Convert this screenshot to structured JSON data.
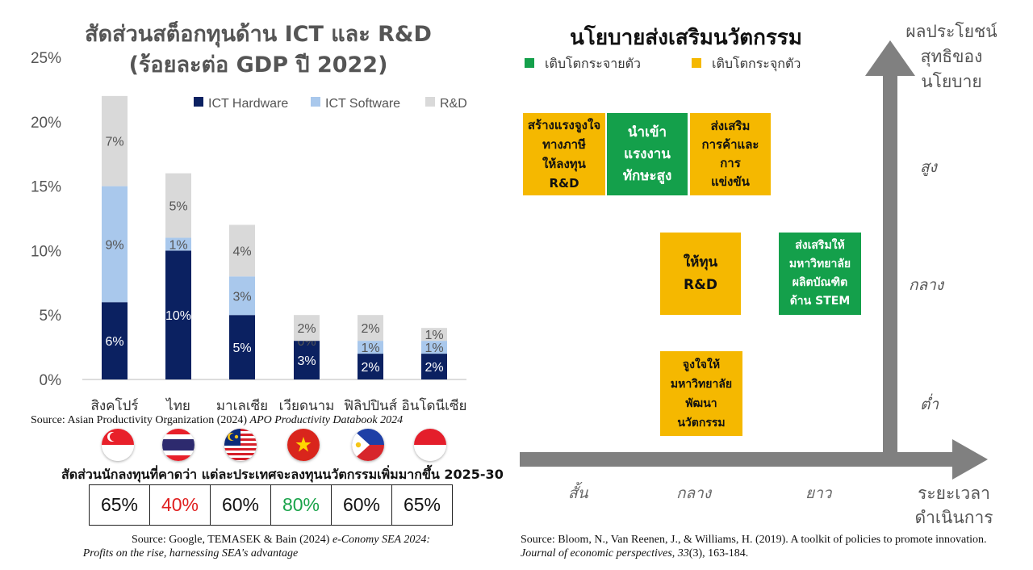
{
  "left": {
    "title_line1": "สัดส่วนสต็อกทุนด้าน ICT และ R&D",
    "title_line2": "(ร้อยละต่อ GDP ปี 2022)",
    "source_plain": "Source: Asian Productivity Organization (2024) ",
    "source_italic": "APO Productivity Databook 2024",
    "flags": [
      "singapore-flag",
      "thailand-flag",
      "malaysia-flag",
      "vietnam-flag",
      "philippines-flag",
      "indonesia-flag"
    ],
    "investor_title": "สัดส่วนนักลงทุนที่คาดว่า แต่ละประเทศจะลงทุนนวัตกรรมเพิ่มมากขึ้น 2025-30",
    "investor_values": [
      {
        "value": "65%",
        "color": "#111111"
      },
      {
        "value": "40%",
        "color": "#E02020"
      },
      {
        "value": "60%",
        "color": "#111111"
      },
      {
        "value": "80%",
        "color": "#1AA34A"
      },
      {
        "value": "60%",
        "color": "#111111"
      },
      {
        "value": "65%",
        "color": "#111111"
      }
    ],
    "investor_source_plain": "Source: Google, TEMASEK & Bain (2024) ",
    "investor_source_italic1": "e-Conomy SEA 2024:",
    "investor_source_italic2": "Profits on the rise, harnessing SEA's advantage"
  },
  "chart_data": {
    "type": "bar",
    "stacked": true,
    "categories": [
      "สิงคโปร์",
      "ไทย",
      "มาเลเซีย",
      "เวียดนาม",
      "ฟิลิปปินส์",
      "อินโดนีเซีย"
    ],
    "series": [
      {
        "name": "ICT Hardware",
        "color": "#0B2161",
        "values": [
          6,
          10,
          5,
          3,
          2,
          2
        ],
        "labels": [
          "6%",
          "10%",
          "5%",
          "3%",
          "2%",
          "2%"
        ]
      },
      {
        "name": "ICT Software",
        "color": "#A9C8EC",
        "values": [
          9,
          1,
          3,
          0,
          1,
          1
        ],
        "labels": [
          "9%",
          "1%",
          "3%",
          "0%",
          "1%",
          "1%"
        ]
      },
      {
        "name": "R&D",
        "color": "#D9D9D9",
        "values": [
          7,
          5,
          4,
          2,
          2,
          1
        ],
        "labels": [
          "7%",
          "5%",
          "4%",
          "2%",
          "2%",
          "1%"
        ]
      }
    ],
    "yticks": [
      "0%",
      "5%",
      "10%",
      "15%",
      "20%",
      "25%"
    ],
    "ylim": [
      0,
      25
    ],
    "legend_position": "top-right"
  },
  "right": {
    "title": "นโยบายส่งเสริมนวัตกรรม",
    "legend": [
      {
        "label": "เติบโตกระจายตัว",
        "color": "#14A04B"
      },
      {
        "label": "เติบโตกระจุกตัว",
        "color": "#F5B800"
      }
    ],
    "boxes": [
      {
        "text": "สร้างแรงจูงใจ\nทางภาษี\nให้ลงทุน\nR&D",
        "kind": "yellow"
      },
      {
        "text": "นำเข้า\nแรงงาน\nทักษะสูง",
        "kind": "green"
      },
      {
        "text": "ส่งเสริม\nการค้าและ\nการ\nแข่งขัน",
        "kind": "yellow"
      },
      {
        "text": "ให้ทุน\nR&D",
        "kind": "yellow"
      },
      {
        "text": "ส่งเสริมให้\nมหาวิทยาลัย\nผลิตบัณฑิต\nด้าน STEM",
        "kind": "green"
      },
      {
        "text": "จูงใจให้\nมหาวิทยาลัย\nพัฒนา\nนวัตกรรม",
        "kind": "yellow"
      }
    ],
    "y_axis_title": "ผลประโยชน์\nสุทธิของ\nนโยบาย",
    "y_levels": [
      "สูง",
      "กลาง",
      "ต่ำ"
    ],
    "x_levels": [
      "สั้น",
      "กลาง",
      "ยาว"
    ],
    "x_axis_title": "ระยะเวลา\nดำเนินการ",
    "source_plain": "Source: Bloom, N., Van Reenen, J., & Williams, H. (2019). A toolkit of policies to promote innovation. ",
    "source_italic": "Journal of economic perspectives",
    "source_tail": ", ",
    "source_vol": "33",
    "source_end": "(3), 163-184."
  }
}
